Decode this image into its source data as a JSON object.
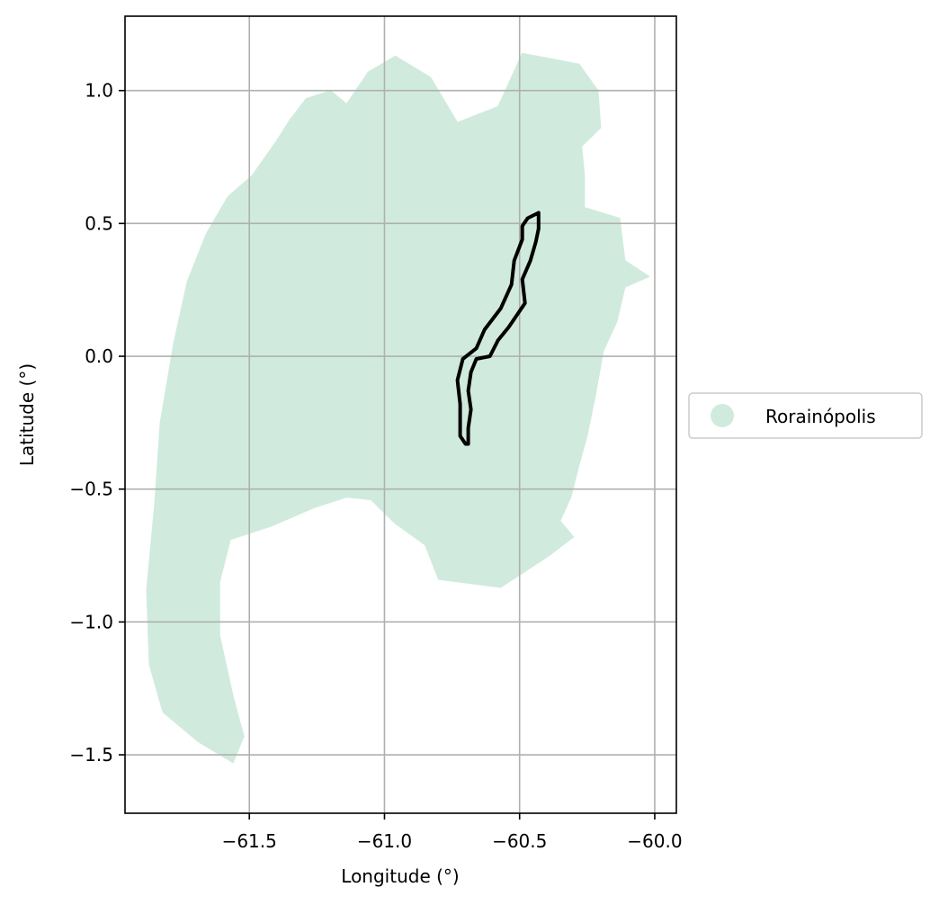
{
  "chart_data": {
    "type": "map",
    "xlabel": "Longitude (°)",
    "ylabel": "Latitude (°)",
    "xlim": [
      -61.96,
      -59.92
    ],
    "ylim": [
      -1.72,
      1.28
    ],
    "x_ticks": [
      -61.5,
      -61.0,
      -60.5,
      -60.0
    ],
    "x_tick_labels": [
      "−61.5",
      "−61.0",
      "−60.5",
      "−60.0"
    ],
    "y_ticks": [
      1.0,
      0.5,
      0.0,
      -0.5,
      -1.0,
      -1.5
    ],
    "y_tick_labels": [
      "1.0",
      "0.5",
      "0.0",
      "−0.5",
      "−1.0",
      "−1.5"
    ],
    "grid": true,
    "legend": {
      "placement": "center-right-outside",
      "entries": [
        {
          "name": "Rorainópolis",
          "color": "#d0ebde",
          "marker": "circle"
        }
      ]
    },
    "region": {
      "name": "Rorainópolis",
      "fill": "#d0ebde",
      "outline_lonlat": [
        [
          -61.49,
          0.68
        ],
        [
          -61.4,
          0.81
        ],
        [
          -61.35,
          0.89
        ],
        [
          -61.29,
          0.97
        ],
        [
          -61.2,
          1.0
        ],
        [
          -61.14,
          0.95
        ],
        [
          -61.06,
          1.07
        ],
        [
          -60.96,
          1.13
        ],
        [
          -60.83,
          1.05
        ],
        [
          -60.73,
          0.88
        ],
        [
          -60.58,
          0.94
        ],
        [
          -60.49,
          1.14
        ],
        [
          -60.28,
          1.1
        ],
        [
          -60.21,
          1.0
        ],
        [
          -60.2,
          0.86
        ],
        [
          -60.27,
          0.79
        ],
        [
          -60.26,
          0.68
        ],
        [
          -60.26,
          0.56
        ],
        [
          -60.13,
          0.52
        ],
        [
          -60.11,
          0.36
        ],
        [
          -60.02,
          0.3
        ],
        [
          -60.11,
          0.26
        ],
        [
          -60.14,
          0.13
        ],
        [
          -60.19,
          0.02
        ],
        [
          -60.22,
          -0.15
        ],
        [
          -60.25,
          -0.3
        ],
        [
          -60.28,
          -0.41
        ],
        [
          -60.31,
          -0.53
        ],
        [
          -60.35,
          -0.62
        ],
        [
          -60.3,
          -0.68
        ],
        [
          -60.39,
          -0.75
        ],
        [
          -60.57,
          -0.87
        ],
        [
          -60.8,
          -0.84
        ],
        [
          -60.85,
          -0.71
        ],
        [
          -60.96,
          -0.63
        ],
        [
          -61.05,
          -0.54
        ],
        [
          -61.14,
          -0.53
        ],
        [
          -61.26,
          -0.57
        ],
        [
          -61.42,
          -0.64
        ],
        [
          -61.57,
          -0.69
        ],
        [
          -61.61,
          -0.85
        ],
        [
          -61.61,
          -1.05
        ],
        [
          -61.56,
          -1.28
        ],
        [
          -61.52,
          -1.43
        ],
        [
          -61.56,
          -1.53
        ],
        [
          -61.69,
          -1.45
        ],
        [
          -61.82,
          -1.34
        ],
        [
          -61.87,
          -1.16
        ],
        [
          -61.88,
          -0.88
        ],
        [
          -61.85,
          -0.55
        ],
        [
          -61.83,
          -0.25
        ],
        [
          -61.78,
          0.05
        ],
        [
          -61.73,
          0.28
        ],
        [
          -61.66,
          0.46
        ],
        [
          -61.58,
          0.6
        ]
      ]
    },
    "highlight_outline": {
      "stroke": "#000000",
      "path_lonlat": [
        [
          -60.7,
          -0.33
        ],
        [
          -60.72,
          -0.3
        ],
        [
          -60.72,
          -0.24
        ],
        [
          -60.72,
          -0.18
        ],
        [
          -60.73,
          -0.09
        ],
        [
          -60.71,
          -0.01
        ],
        [
          -60.66,
          0.03
        ],
        [
          -60.63,
          0.1
        ],
        [
          -60.57,
          0.18
        ],
        [
          -60.53,
          0.27
        ],
        [
          -60.52,
          0.36
        ],
        [
          -60.49,
          0.44
        ],
        [
          -60.49,
          0.49
        ],
        [
          -60.47,
          0.52
        ],
        [
          -60.43,
          0.54
        ],
        [
          -60.43,
          0.48
        ],
        [
          -60.44,
          0.43
        ],
        [
          -60.46,
          0.36
        ],
        [
          -60.49,
          0.29
        ],
        [
          -60.48,
          0.2
        ],
        [
          -60.54,
          0.11
        ],
        [
          -60.58,
          0.06
        ],
        [
          -60.61,
          0.0
        ],
        [
          -60.66,
          -0.01
        ],
        [
          -60.68,
          -0.06
        ],
        [
          -60.69,
          -0.13
        ],
        [
          -60.68,
          -0.2
        ],
        [
          -60.69,
          -0.27
        ],
        [
          -60.69,
          -0.33
        ]
      ]
    }
  }
}
